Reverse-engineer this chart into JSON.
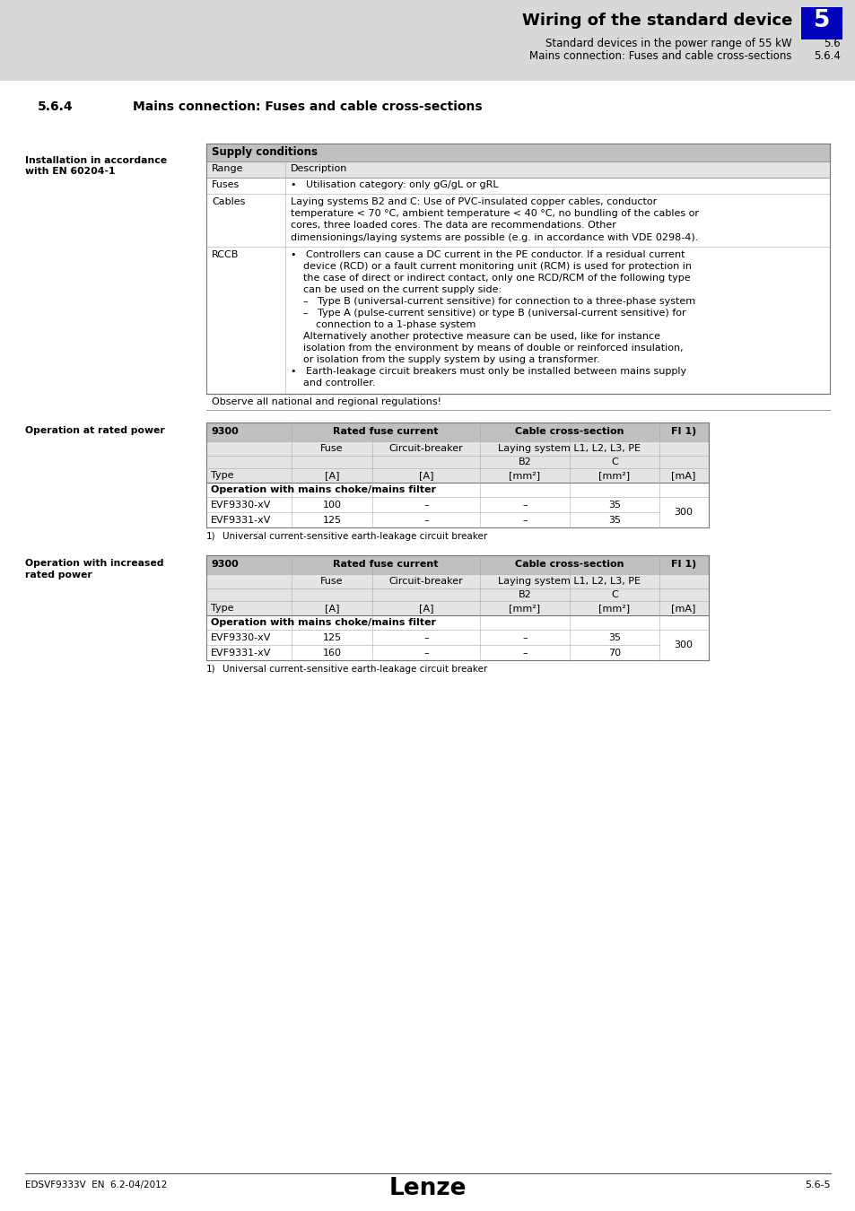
{
  "header_bg": "#d8d8d8",
  "page_bg": "#e8e8e8",
  "white": "#ffffff",
  "black": "#000000",
  "table_header_bg": "#c0c0c0",
  "table_row_bg": "#e4e4e4",
  "blue_box": "#0000bb",
  "header_title": "Wiring of the standard device",
  "header_sub1": "Standard devices in the power range of 55 kW",
  "header_sub2": "Mains connection: Fuses and cable cross-sections",
  "header_num1": "5.6",
  "header_num2": "5.6.4",
  "header_chapter": "5",
  "section_num": "5.6.4",
  "section_title": "Mains connection: Fuses and cable cross-sections",
  "left_label1a": "Installation in accordance",
  "left_label1b": "with EN 60204-1",
  "supply_header": "Supply conditions",
  "col1_header": "Range",
  "col2_header": "Description",
  "fuses_label": "Fuses",
  "fuses_text": "•   Utilisation category: only gG/gL or gRL",
  "cables_label": "Cables",
  "cables_lines": [
    "Laying systems B2 and C: Use of PVC-insulated copper cables, conductor",
    "temperature < 70 °C, ambient temperature < 40 °C, no bundling of the cables or",
    "cores, three loaded cores. The data are recommendations. Other",
    "dimensionings/laying systems are possible (e.g. in accordance with VDE 0298-4)."
  ],
  "rccb_label": "RCCB",
  "rccb_lines": [
    "•   Controllers can cause a DC current in the PE conductor. If a residual current",
    "    device (RCD) or a fault current monitoring unit (RCM) is used for protection in",
    "    the case of direct or indirect contact, only one RCD/RCM of the following type",
    "    can be used on the current supply side:",
    "    –   Type B (universal-current sensitive) for connection to a three-phase system",
    "    –   Type A (pulse-current sensitive) or type B (universal-current sensitive) for",
    "        connection to a 1-phase system",
    "    Alternatively another protective measure can be used, like for instance",
    "    isolation from the environment by means of double or reinforced insulation,",
    "    or isolation from the supply system by using a transformer.",
    "•   Earth-leakage circuit breakers must only be installed between mains supply",
    "    and controller."
  ],
  "observe_text": "Observe all national and regional regulations!",
  "op_rated_label": "Operation at rated power",
  "op_increased_label1": "Operation with increased",
  "op_increased_label2": "rated power",
  "tbl_col0": "9300",
  "tbl_rated_fuse": "Rated fuse current",
  "tbl_cable_cs": "Cable cross-section",
  "tbl_fi": "FI 1)",
  "tbl_fuse": "Fuse",
  "tbl_cb": "Circuit-breaker",
  "tbl_laying": "Laying system L1, L2, L3, PE",
  "tbl_b2": "B2",
  "tbl_c": "C",
  "tbl_type": "Type",
  "tbl_a": "[A]",
  "tbl_mm2_b2": "[mm²]",
  "tbl_mm2_c": "[mm²]",
  "tbl_ma": "[mA]",
  "tbl_choke": "Operation with mains choke/mains filter",
  "rated_rows": [
    [
      "EVF9330-xV",
      "100",
      "–",
      "–",
      "35"
    ],
    [
      "EVF9331-xV",
      "125",
      "–",
      "–",
      "35"
    ]
  ],
  "rated_fi": "300",
  "inc_rows": [
    [
      "EVF9330-xV",
      "125",
      "–",
      "–",
      "35"
    ],
    [
      "EVF9331-xV",
      "160",
      "–",
      "–",
      "70"
    ]
  ],
  "inc_fi": "300",
  "footnote_num": "1)",
  "footnote_text": "Universal current-sensitive earth-leakage circuit breaker",
  "footer_left": "EDSVF9333V  EN  6.2-04/2012",
  "footer_center": "Lenze",
  "footer_right": "5.6-5"
}
